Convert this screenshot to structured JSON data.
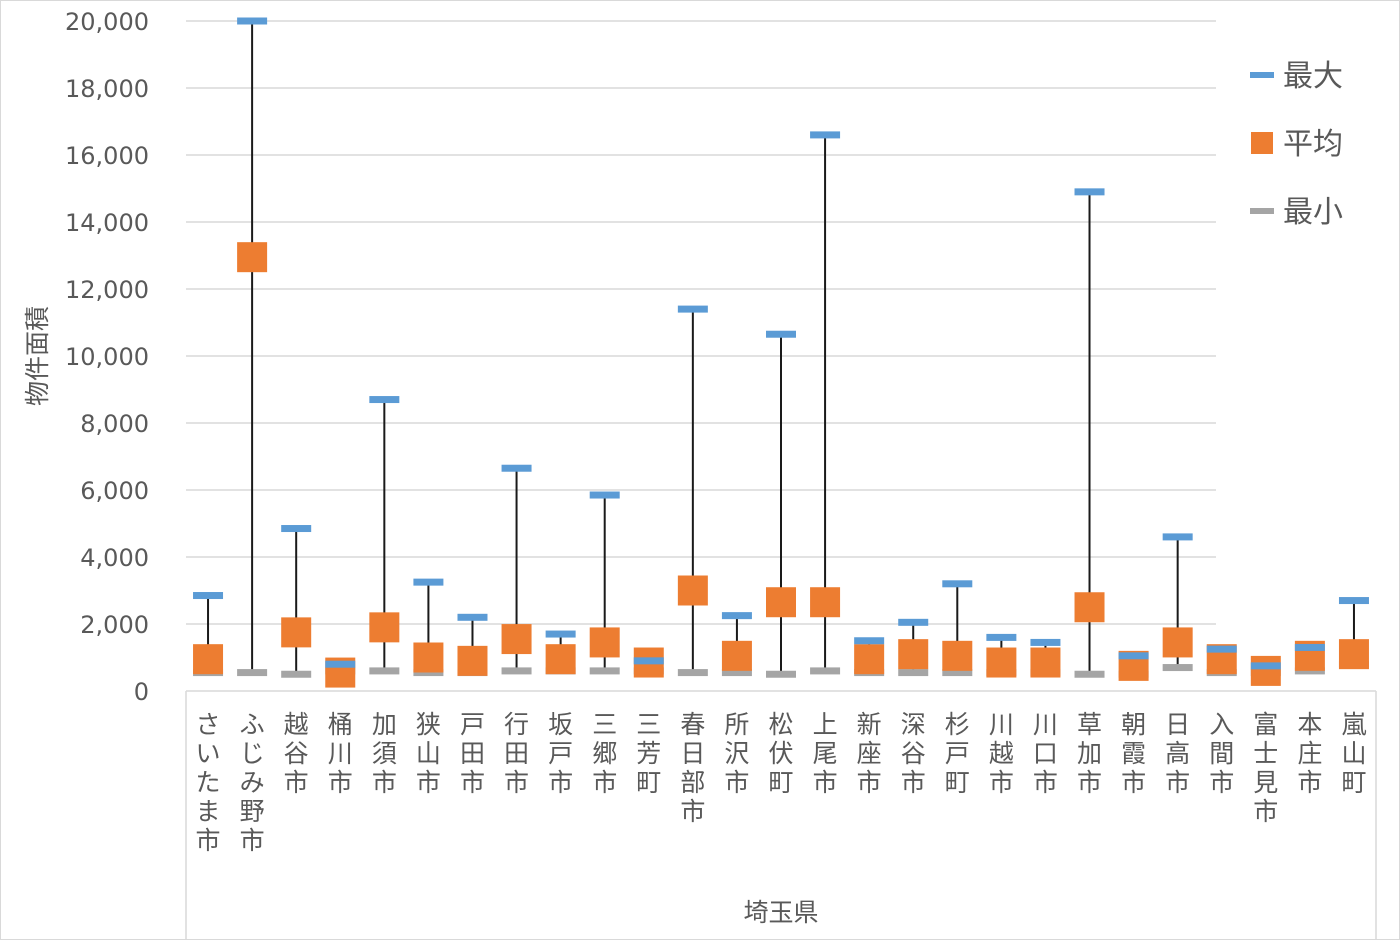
{
  "chart_data": {
    "type": "stock",
    "ylabel": "物件面積",
    "xlabel": "埼玉県",
    "ylim": [
      0,
      20000
    ],
    "ytick_step": 2000,
    "grid": true,
    "legend_position": "right",
    "categories": [
      "さいたま市",
      "ふじみ野市",
      "越谷市",
      "桶川市",
      "加須市",
      "狭山市",
      "戸田市",
      "行田市",
      "坂戸市",
      "三郷市",
      "三芳町",
      "春日部市",
      "所沢市",
      "松伏町",
      "上尾市",
      "新座市",
      "深谷市",
      "杉戸町",
      "川越市",
      "川口市",
      "草加市",
      "朝霞市",
      "日高市",
      "入間市",
      "富士見市",
      "本庄市",
      "嵐山町"
    ],
    "series": [
      {
        "name": "最大",
        "color": "#5b9bd5",
        "values": [
          2850,
          20000,
          4850,
          800,
          8700,
          3250,
          2200,
          6650,
          1700,
          5850,
          900,
          11400,
          2250,
          10650,
          16600,
          1500,
          2050,
          3200,
          1600,
          1450,
          14900,
          1050,
          4600,
          1250,
          750,
          1300,
          2700
        ]
      },
      {
        "name": "平均",
        "color": "#ed7d31",
        "values": [
          950,
          12950,
          1750,
          550,
          1900,
          1000,
          900,
          1550,
          950,
          1450,
          850,
          3000,
          1050,
          2650,
          2650,
          950,
          1100,
          1050,
          850,
          850,
          2500,
          750,
          1450,
          950,
          600,
          1050,
          1100
        ]
      },
      {
        "name": "最小",
        "color": "#a5a5a5",
        "values": [
          550,
          550,
          500,
          600,
          600,
          550,
          550,
          600,
          600,
          600,
          600,
          550,
          550,
          500,
          600,
          550,
          550,
          550,
          550,
          550,
          500,
          500,
          700,
          550,
          550,
          600,
          800
        ]
      }
    ]
  }
}
